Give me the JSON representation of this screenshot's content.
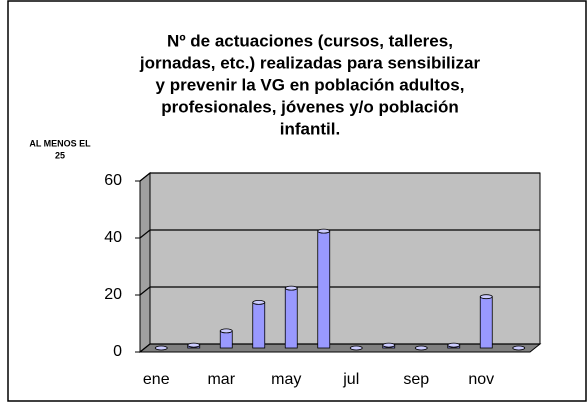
{
  "chart_data": {
    "type": "bar",
    "title": [
      "Nº de actuaciones (cursos, talleres,",
      "jornadas, etc.) realizadas para sensibilizar",
      "y prevenir la VG en población adultos,",
      "profesionales, jóvenes y/o población",
      "infantil."
    ],
    "annotation": [
      "AL MENOS EL",
      "25"
    ],
    "categories": [
      "ene",
      null,
      "mar",
      null,
      "may",
      null,
      "jul",
      null,
      "sep",
      null,
      "nov",
      null
    ],
    "values": [
      0,
      1,
      6,
      16,
      21,
      41,
      0,
      1,
      0,
      1,
      18,
      0
    ],
    "color": "#9999ff",
    "ylim": [
      0,
      60
    ],
    "yticks": [
      0,
      20,
      40,
      60
    ],
    "grid": true
  }
}
